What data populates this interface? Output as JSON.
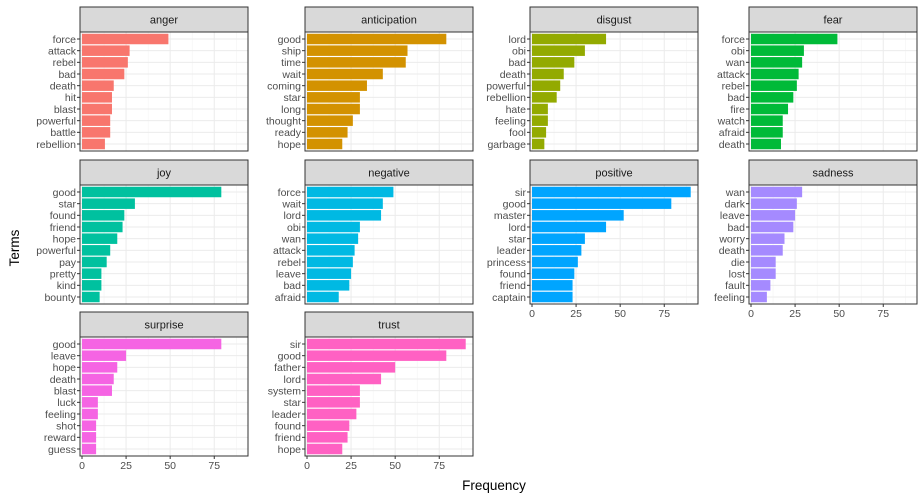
{
  "chart_data": {
    "type": "bar",
    "orientation": "horizontal",
    "xlabel": "Frequency",
    "ylabel": "Terms",
    "xlim": [
      0,
      93
    ],
    "xticks": [
      0,
      25,
      50,
      75
    ],
    "grid": true,
    "panels": [
      {
        "name": "anger",
        "color": "#F8766D",
        "categories": [
          "force",
          "attack",
          "rebel",
          "bad",
          "death",
          "hit",
          "blast",
          "powerful",
          "battle",
          "rebellion"
        ],
        "values": [
          49,
          27,
          26,
          24,
          18,
          17,
          17,
          16,
          16,
          13
        ]
      },
      {
        "name": "anticipation",
        "color": "#D39200",
        "categories": [
          "good",
          "ship",
          "time",
          "wait",
          "coming",
          "star",
          "long",
          "thought",
          "ready",
          "hope"
        ],
        "values": [
          79,
          57,
          56,
          43,
          34,
          30,
          30,
          26,
          23,
          20
        ]
      },
      {
        "name": "disgust",
        "color": "#93AA00",
        "categories": [
          "lord",
          "obi",
          "bad",
          "death",
          "powerful",
          "rebellion",
          "hate",
          "feeling",
          "fool",
          "garbage"
        ],
        "values": [
          42,
          30,
          24,
          18,
          16,
          14,
          9,
          9,
          8,
          7
        ]
      },
      {
        "name": "fear",
        "color": "#00BA38",
        "categories": [
          "force",
          "obi",
          "wan",
          "attack",
          "rebel",
          "bad",
          "fire",
          "watch",
          "afraid",
          "death"
        ],
        "values": [
          49,
          30,
          29,
          27,
          26,
          24,
          21,
          18,
          18,
          17
        ]
      },
      {
        "name": "joy",
        "color": "#00C19F",
        "categories": [
          "good",
          "star",
          "found",
          "friend",
          "hope",
          "powerful",
          "pay",
          "pretty",
          "kind",
          "bounty"
        ],
        "values": [
          79,
          30,
          24,
          23,
          20,
          16,
          14,
          11,
          11,
          10
        ]
      },
      {
        "name": "negative",
        "color": "#00B9E3",
        "categories": [
          "force",
          "wait",
          "lord",
          "obi",
          "wan",
          "attack",
          "rebel",
          "leave",
          "bad",
          "afraid"
        ],
        "values": [
          49,
          43,
          42,
          30,
          29,
          27,
          26,
          25,
          24,
          18
        ]
      },
      {
        "name": "positive",
        "color": "#00A5FF",
        "categories": [
          "sir",
          "good",
          "master",
          "lord",
          "star",
          "leader",
          "princess",
          "found",
          "friend",
          "captain"
        ],
        "values": [
          90,
          79,
          52,
          42,
          30,
          28,
          26,
          24,
          23,
          23
        ]
      },
      {
        "name": "sadness",
        "color": "#A58AFF",
        "categories": [
          "wan",
          "dark",
          "leave",
          "bad",
          "worry",
          "death",
          "die",
          "lost",
          "fault",
          "feeling"
        ],
        "values": [
          29,
          26,
          25,
          24,
          19,
          18,
          14,
          14,
          11,
          9
        ]
      },
      {
        "name": "surprise",
        "color": "#F564E3",
        "categories": [
          "good",
          "leave",
          "hope",
          "death",
          "blast",
          "luck",
          "feeling",
          "shot",
          "reward",
          "guess"
        ],
        "values": [
          79,
          25,
          20,
          18,
          17,
          9,
          9,
          8,
          8,
          8
        ]
      },
      {
        "name": "trust",
        "color": "#FF61C3",
        "categories": [
          "sir",
          "good",
          "father",
          "lord",
          "system",
          "star",
          "leader",
          "found",
          "friend",
          "hope"
        ],
        "values": [
          90,
          79,
          50,
          42,
          30,
          30,
          28,
          24,
          23,
          20
        ]
      }
    ]
  }
}
